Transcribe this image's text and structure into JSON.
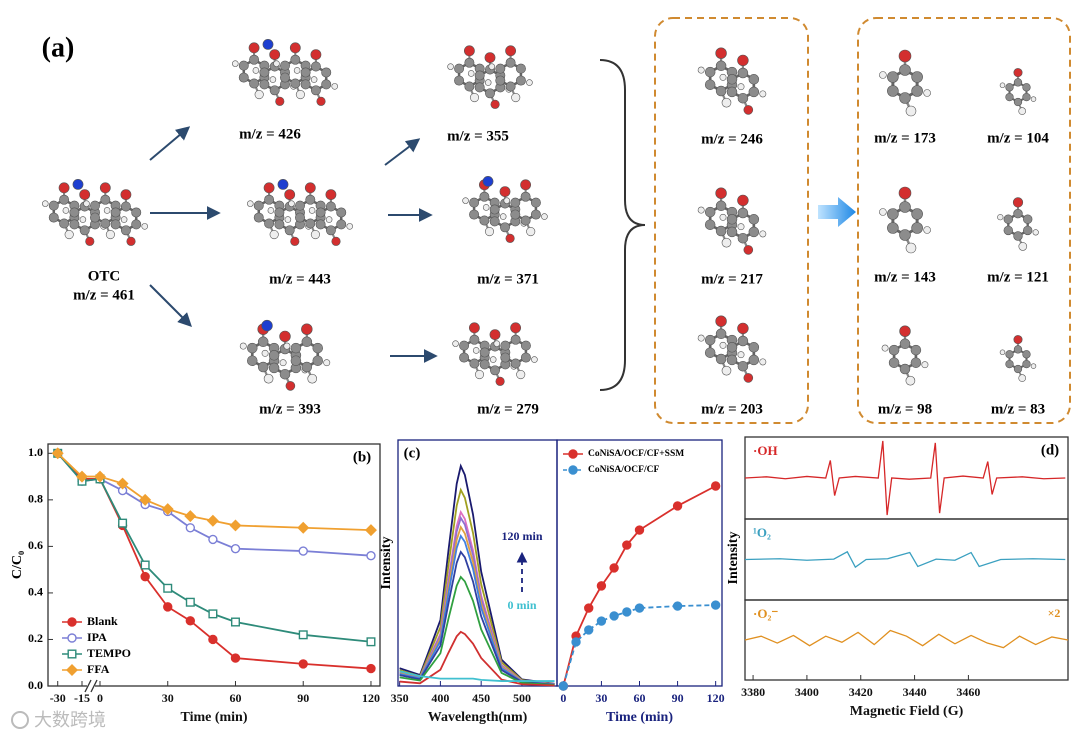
{
  "diagram": {
    "label": "(a)",
    "nodes": [
      {
        "name": "OTC",
        "label": "m/z = 461"
      },
      {
        "label": "m/z = 426"
      },
      {
        "label": "m/z = 443"
      },
      {
        "label": "m/z = 393"
      },
      {
        "label": "m/z = 355"
      },
      {
        "label": "m/z = 371"
      },
      {
        "label": "m/z = 279"
      },
      {
        "label": "m/z = 246"
      },
      {
        "label": "m/z = 217"
      },
      {
        "label": "m/z = 203"
      },
      {
        "label": "m/z = 173"
      },
      {
        "label": "m/z = 104"
      },
      {
        "label": "m/z = 143"
      },
      {
        "label": "m/z = 121"
      },
      {
        "label": "m/z = 98"
      },
      {
        "label": "m/z = 83"
      }
    ]
  },
  "chart_data": [
    {
      "type": "line",
      "panel_label": "(b)",
      "xlabel": "Time (min)",
      "ylabel": "C/C₀",
      "x": [
        -30,
        -15,
        0,
        10,
        20,
        30,
        40,
        50,
        60,
        90,
        120
      ],
      "xlim": [
        -36,
        124
      ],
      "x_break": [
        -15,
        0
      ],
      "xticks": [
        -30,
        -15,
        0,
        30,
        60,
        90,
        120
      ],
      "ylim": [
        0,
        1.04
      ],
      "yticks": [
        {
          "value": 0,
          "label": "0.0"
        },
        0.2,
        0.4,
        0.6,
        0.8,
        {
          "value": 1,
          "label": "1.0"
        }
      ],
      "legend": "lower left",
      "series": [
        {
          "name": "Blank",
          "color": "#d9302c",
          "marker": "circle-filled",
          "values": [
            1.0,
            0.89,
            0.89,
            0.69,
            0.47,
            0.34,
            0.28,
            0.2,
            0.12,
            0.095,
            0.075
          ]
        },
        {
          "name": "IPA",
          "color": "#7b7fd6",
          "marker": "circle-open",
          "values": [
            1.0,
            0.88,
            0.89,
            0.84,
            0.78,
            0.75,
            0.68,
            0.63,
            0.59,
            0.58,
            0.56
          ]
        },
        {
          "name": "TEMPO",
          "color": "#2e8b7a",
          "marker": "square-open",
          "values": [
            1.0,
            0.88,
            0.89,
            0.7,
            0.52,
            0.42,
            0.36,
            0.31,
            0.275,
            0.22,
            0.19
          ]
        },
        {
          "name": "FFA",
          "color": "#f0a030",
          "marker": "diamond-filled",
          "values": [
            1.0,
            0.9,
            0.9,
            0.87,
            0.8,
            0.76,
            0.73,
            0.71,
            0.69,
            0.68,
            0.67
          ]
        }
      ]
    },
    {
      "type": "line",
      "panel_label": "(c)",
      "xlabel": "Wavelength(nm)",
      "ylabel": "Intensity",
      "x": [
        350,
        375,
        400,
        410,
        420,
        425,
        430,
        440,
        450,
        475,
        500,
        540
      ],
      "xlim": [
        348,
        543
      ],
      "xticks": [
        350,
        400,
        450,
        500
      ],
      "ylim": [
        0,
        1
      ],
      "annotations": [
        {
          "text": "120 min",
          "color": "#1a237e"
        },
        {
          "text": "0 min",
          "color": "#40c0d0"
        }
      ],
      "series": [
        {
          "color": "#1a1a6e",
          "values": [
            0.072,
            0.045,
            0.268,
            0.554,
            0.822,
            0.894,
            0.858,
            0.697,
            0.465,
            0.107,
            0.027,
            0.009
          ]
        },
        {
          "color": "#a0a020",
          "values": [
            0.064,
            0.04,
            0.239,
            0.494,
            0.733,
            0.797,
            0.765,
            0.622,
            0.414,
            0.096,
            0.024,
            0.008
          ]
        },
        {
          "color": "#e070c0",
          "values": [
            0.057,
            0.035,
            0.212,
            0.438,
            0.65,
            0.707,
            0.679,
            0.551,
            0.368,
            0.085,
            0.021,
            0.007
          ]
        },
        {
          "color": "#9070d0",
          "values": [
            0.055,
            0.034,
            0.205,
            0.423,
            0.628,
            0.683,
            0.656,
            0.533,
            0.355,
            0.082,
            0.02,
            0.007
          ]
        },
        {
          "color": "#e0a040",
          "values": [
            0.052,
            0.032,
            0.194,
            0.401,
            0.594,
            0.646,
            0.62,
            0.504,
            0.336,
            0.078,
            0.019,
            0.006
          ]
        },
        {
          "color": "#4080e0",
          "values": [
            0.049,
            0.031,
            0.183,
            0.378,
            0.561,
            0.61,
            0.586,
            0.476,
            0.317,
            0.073,
            0.018,
            0.006
          ]
        },
        {
          "color": "#3040a0",
          "values": [
            0.044,
            0.027,
            0.164,
            0.338,
            0.501,
            0.545,
            0.523,
            0.425,
            0.283,
            0.065,
            0.016,
            0.005
          ]
        },
        {
          "color": "#30a040",
          "values": [
            0.035,
            0.022,
            0.133,
            0.275,
            0.408,
            0.443,
            0.425,
            0.346,
            0.23,
            0.053,
            0.013,
            0.004
          ]
        },
        {
          "color": "#d03030",
          "values": [
            0.018,
            0.011,
            0.066,
            0.136,
            0.202,
            0.22,
            0.211,
            0.172,
            0.114,
            0.026,
            0.007,
            0.002
          ]
        },
        {
          "color": "#40c0d0",
          "values": [
            0.06,
            0.04,
            0.03,
            0.03,
            0.03,
            0.03,
            0.03,
            0.03,
            0.025,
            0.02,
            0.02,
            0.02
          ]
        }
      ]
    },
    {
      "type": "line",
      "xlabel": "Time (min)",
      "x": [
        0,
        10,
        20,
        30,
        40,
        50,
        60,
        90,
        120
      ],
      "xlim": [
        -5,
        125
      ],
      "xticks": [
        0,
        30,
        60,
        90,
        120
      ],
      "ylim": [
        0,
        1
      ],
      "legend": "upper left",
      "series": [
        {
          "name": "CoNiSA/OCF/CF+SSM",
          "color": "#d9302c",
          "marker": "circle-filled",
          "values": [
            0,
            0.203,
            0.317,
            0.407,
            0.48,
            0.573,
            0.634,
            0.732,
            0.813
          ]
        },
        {
          "name": "CoNiSA/OCF/CF",
          "color": "#3a8fd0",
          "marker": "circle-filled",
          "dash": true,
          "values": [
            0,
            0.179,
            0.228,
            0.264,
            0.285,
            0.301,
            0.317,
            0.325,
            0.329
          ]
        }
      ]
    },
    {
      "type": "line",
      "panel_label": "(d)",
      "ylabel": "Intensity",
      "x": [
        3377,
        3385,
        3392,
        3400,
        3407,
        3408.7,
        3410.3,
        3412,
        3418,
        3426.5,
        3428.2,
        3429.8,
        3431.5,
        3438,
        3446,
        3447.7,
        3449.3,
        3451,
        3458,
        3465.5,
        3467.2,
        3468.8,
        3470.5,
        3480,
        3488,
        3496
      ],
      "xlim": [
        3377,
        3497
      ],
      "ylim": [
        -1.05,
        1.05
      ],
      "series": [
        {
          "name": "·OH",
          "color": "#d62728",
          "values": [
            0,
            0.03,
            -0.02,
            0.04,
            0,
            0.45,
            -0.45,
            0,
            0.04,
            0,
            0.95,
            -0.95,
            0,
            -0.03,
            0,
            0.9,
            -0.9,
            0,
            0.05,
            0,
            0.42,
            -0.42,
            0,
            0.03,
            -0.02,
            0
          ]
        }
      ]
    },
    {
      "type": "line",
      "x": [
        3377,
        3390,
        3400,
        3410,
        3415,
        3418,
        3422,
        3430,
        3438.2,
        3441.2,
        3448,
        3455,
        3461,
        3464,
        3472,
        3484,
        3496
      ],
      "xlim": [
        3377,
        3497
      ],
      "ylim": [
        -1.05,
        1.05
      ],
      "series": [
        {
          "name": "¹O₂",
          "color": "#3aa0c0",
          "values": [
            0,
            0.02,
            -0.02,
            0.01,
            0.2,
            -0.2,
            0,
            0.02,
            0.18,
            -0.18,
            0.01,
            -0.02,
            0.18,
            -0.18,
            0,
            0.02,
            0
          ]
        }
      ]
    },
    {
      "type": "line",
      "xlabel": "Magnetic Field (G)",
      "x": [
        3377,
        3383,
        3389,
        3395,
        3401,
        3407,
        3413,
        3419,
        3425,
        3431,
        3437,
        3443,
        3449,
        3455,
        3461,
        3467,
        3473,
        3479,
        3485,
        3491,
        3497
      ],
      "xlim": [
        3377,
        3497
      ],
      "xticks": [
        3380,
        3400,
        3420,
        3440,
        3460
      ],
      "ylim": [
        -1.05,
        1.05
      ],
      "annotations": [
        {
          "text": "×2",
          "color": "#e09020"
        }
      ],
      "series": [
        {
          "name": "·O₂⁻",
          "color": "#e09020",
          "values": [
            0,
            0.1,
            -0.08,
            0.12,
            -0.15,
            0.1,
            -0.06,
            0.2,
            -0.12,
            0.25,
            0.1,
            -0.15,
            0.15,
            -0.1,
            0.12,
            -0.08,
            -0.2,
            0.1,
            -0.12,
            0.08,
            0
          ]
        }
      ]
    }
  ],
  "watermark": "大数跨境"
}
